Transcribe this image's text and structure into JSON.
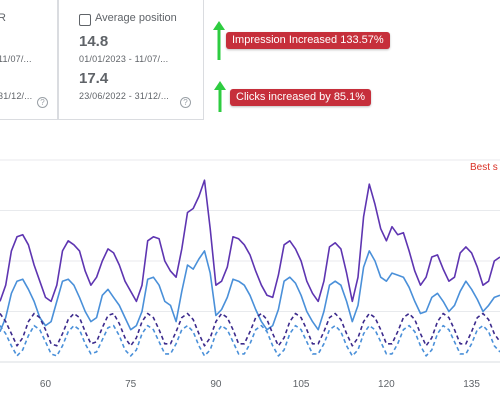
{
  "cards": {
    "ctr": {
      "title_fragment": "R",
      "range1_fragment": "11/07/...",
      "range2_fragment": "31/12/...",
      "help": "?"
    },
    "avg_position": {
      "title": "Average position",
      "value1": "14.8",
      "range1": "01/01/2023 - 11/07/...",
      "value2": "17.4",
      "range2": "23/06/2022 - 31/12/...",
      "help": "?"
    }
  },
  "annotations": {
    "impressions": "Impression Increased 133.57%",
    "clicks": "Clicks increased by 85.1%",
    "arrow_color": "#2ecc40",
    "callout_color": "#c62f3b"
  },
  "chart_label_fragment": "Best s",
  "chart_data": {
    "type": "line",
    "x_ticks": [
      "60",
      "75",
      "90",
      "105",
      "120",
      "135"
    ],
    "xlim": [
      52,
      140
    ],
    "ylim": [
      0,
      1
    ],
    "grid": true,
    "series": [
      {
        "color": "#5e35b1",
        "style": "solid",
        "x": [
          52,
          53,
          54,
          55,
          56,
          57,
          58,
          59,
          60,
          61,
          62,
          63,
          64,
          65,
          66,
          67,
          68,
          69,
          70,
          71,
          72,
          73,
          74,
          75,
          76,
          77,
          78,
          79,
          80,
          81,
          82,
          83,
          84,
          85,
          86,
          87,
          88,
          89,
          90,
          91,
          92,
          93,
          94,
          95,
          96,
          97,
          98,
          99,
          100,
          101,
          102,
          103,
          104,
          105,
          106,
          107,
          108,
          109,
          110,
          111,
          112,
          113,
          114,
          115,
          116,
          117,
          118,
          119,
          120,
          121,
          122,
          123,
          124,
          125,
          126,
          127,
          128,
          129,
          130,
          131,
          132,
          133,
          134,
          135,
          136,
          137,
          138,
          139,
          140
        ],
        "values": [
          0.3,
          0.38,
          0.55,
          0.62,
          0.63,
          0.58,
          0.48,
          0.4,
          0.32,
          0.3,
          0.38,
          0.55,
          0.6,
          0.58,
          0.55,
          0.45,
          0.38,
          0.42,
          0.5,
          0.56,
          0.54,
          0.48,
          0.4,
          0.35,
          0.3,
          0.38,
          0.6,
          0.62,
          0.61,
          0.5,
          0.45,
          0.42,
          0.56,
          0.74,
          0.76,
          0.82,
          0.9,
          0.66,
          0.38,
          0.4,
          0.47,
          0.62,
          0.61,
          0.58,
          0.53,
          0.45,
          0.38,
          0.33,
          0.32,
          0.43,
          0.58,
          0.6,
          0.56,
          0.5,
          0.4,
          0.34,
          0.3,
          0.4,
          0.57,
          0.59,
          0.56,
          0.44,
          0.3,
          0.42,
          0.72,
          0.88,
          0.78,
          0.66,
          0.6,
          0.67,
          0.63,
          0.64,
          0.55,
          0.45,
          0.38,
          0.42,
          0.52,
          0.53,
          0.46,
          0.4,
          0.42,
          0.54,
          0.57,
          0.54,
          0.47,
          0.38,
          0.4,
          0.5,
          0.52
        ]
      },
      {
        "color": "#4a90d9",
        "style": "solid",
        "x": [
          52,
          53,
          54,
          55,
          56,
          57,
          58,
          59,
          60,
          61,
          62,
          63,
          64,
          65,
          66,
          67,
          68,
          69,
          70,
          71,
          72,
          73,
          74,
          75,
          76,
          77,
          78,
          79,
          80,
          81,
          82,
          83,
          84,
          85,
          86,
          87,
          88,
          89,
          90,
          91,
          92,
          93,
          94,
          95,
          96,
          97,
          98,
          99,
          100,
          101,
          102,
          103,
          104,
          105,
          106,
          107,
          108,
          109,
          110,
          111,
          112,
          113,
          114,
          115,
          116,
          117,
          118,
          119,
          120,
          121,
          122,
          123,
          124,
          125,
          126,
          127,
          128,
          129,
          130,
          131,
          132,
          133,
          134,
          135,
          136,
          137,
          138,
          139,
          140
        ],
        "values": [
          0.15,
          0.22,
          0.34,
          0.4,
          0.41,
          0.36,
          0.3,
          0.22,
          0.18,
          0.2,
          0.3,
          0.4,
          0.41,
          0.38,
          0.32,
          0.25,
          0.2,
          0.22,
          0.33,
          0.36,
          0.32,
          0.28,
          0.22,
          0.16,
          0.18,
          0.25,
          0.41,
          0.42,
          0.38,
          0.3,
          0.28,
          0.2,
          0.35,
          0.48,
          0.46,
          0.51,
          0.55,
          0.44,
          0.23,
          0.26,
          0.32,
          0.41,
          0.4,
          0.38,
          0.33,
          0.26,
          0.2,
          0.16,
          0.18,
          0.26,
          0.4,
          0.42,
          0.39,
          0.33,
          0.25,
          0.2,
          0.16,
          0.25,
          0.38,
          0.4,
          0.38,
          0.3,
          0.2,
          0.28,
          0.47,
          0.55,
          0.5,
          0.42,
          0.4,
          0.44,
          0.43,
          0.42,
          0.37,
          0.3,
          0.24,
          0.25,
          0.32,
          0.34,
          0.3,
          0.25,
          0.28,
          0.35,
          0.4,
          0.36,
          0.31,
          0.25,
          0.28,
          0.32,
          0.33
        ]
      },
      {
        "color": "#3c2a8c",
        "style": "dashed",
        "x": [
          52,
          53,
          54,
          55,
          56,
          57,
          58,
          59,
          60,
          61,
          62,
          63,
          64,
          65,
          66,
          67,
          68,
          69,
          70,
          71,
          72,
          73,
          74,
          75,
          76,
          77,
          78,
          79,
          80,
          81,
          82,
          83,
          84,
          85,
          86,
          87,
          88,
          89,
          90,
          91,
          92,
          93,
          94,
          95,
          96,
          97,
          98,
          99,
          100,
          101,
          102,
          103,
          104,
          105,
          106,
          107,
          108,
          109,
          110,
          111,
          112,
          113,
          114,
          115,
          116,
          117,
          118,
          119,
          120,
          121,
          122,
          123,
          124,
          125,
          126,
          127,
          128,
          129,
          130,
          131,
          132,
          133,
          134,
          135,
          136,
          137,
          138,
          139,
          140
        ],
        "values": [
          0.24,
          0.2,
          0.14,
          0.08,
          0.12,
          0.2,
          0.24,
          0.22,
          0.16,
          0.09,
          0.08,
          0.14,
          0.21,
          0.24,
          0.22,
          0.15,
          0.09,
          0.1,
          0.17,
          0.23,
          0.24,
          0.19,
          0.12,
          0.08,
          0.12,
          0.2,
          0.24,
          0.22,
          0.16,
          0.09,
          0.09,
          0.15,
          0.22,
          0.24,
          0.21,
          0.14,
          0.08,
          0.12,
          0.2,
          0.24,
          0.22,
          0.16,
          0.09,
          0.09,
          0.15,
          0.22,
          0.24,
          0.21,
          0.14,
          0.08,
          0.12,
          0.2,
          0.24,
          0.22,
          0.16,
          0.09,
          0.09,
          0.15,
          0.22,
          0.24,
          0.21,
          0.14,
          0.08,
          0.12,
          0.2,
          0.24,
          0.22,
          0.16,
          0.09,
          0.09,
          0.15,
          0.22,
          0.24,
          0.21,
          0.14,
          0.08,
          0.12,
          0.2,
          0.24,
          0.22,
          0.16,
          0.09,
          0.09,
          0.15,
          0.22,
          0.24,
          0.21,
          0.14,
          0.1
        ]
      },
      {
        "color": "#4a90d9",
        "style": "dashed",
        "x": [
          52,
          53,
          54,
          55,
          56,
          57,
          58,
          59,
          60,
          61,
          62,
          63,
          64,
          65,
          66,
          67,
          68,
          69,
          70,
          71,
          72,
          73,
          74,
          75,
          76,
          77,
          78,
          79,
          80,
          81,
          82,
          83,
          84,
          85,
          86,
          87,
          88,
          89,
          90,
          91,
          92,
          93,
          94,
          95,
          96,
          97,
          98,
          99,
          100,
          101,
          102,
          103,
          104,
          105,
          106,
          107,
          108,
          109,
          110,
          111,
          112,
          113,
          114,
          115,
          116,
          117,
          118,
          119,
          120,
          121,
          122,
          123,
          124,
          125,
          126,
          127,
          128,
          129,
          130,
          131,
          132,
          133,
          134,
          135,
          136,
          137,
          138,
          139,
          140
        ],
        "values": [
          0.18,
          0.14,
          0.08,
          0.03,
          0.06,
          0.13,
          0.18,
          0.16,
          0.1,
          0.04,
          0.03,
          0.08,
          0.15,
          0.18,
          0.16,
          0.09,
          0.04,
          0.05,
          0.11,
          0.17,
          0.18,
          0.13,
          0.06,
          0.03,
          0.06,
          0.14,
          0.18,
          0.16,
          0.1,
          0.04,
          0.04,
          0.09,
          0.16,
          0.18,
          0.15,
          0.08,
          0.03,
          0.06,
          0.14,
          0.18,
          0.16,
          0.1,
          0.04,
          0.04,
          0.09,
          0.16,
          0.18,
          0.15,
          0.08,
          0.03,
          0.06,
          0.14,
          0.18,
          0.16,
          0.1,
          0.04,
          0.04,
          0.09,
          0.16,
          0.18,
          0.15,
          0.08,
          0.03,
          0.06,
          0.14,
          0.18,
          0.16,
          0.1,
          0.04,
          0.04,
          0.09,
          0.16,
          0.18,
          0.15,
          0.08,
          0.03,
          0.06,
          0.14,
          0.18,
          0.16,
          0.1,
          0.04,
          0.04,
          0.09,
          0.16,
          0.18,
          0.15,
          0.08,
          0.05
        ]
      }
    ]
  }
}
